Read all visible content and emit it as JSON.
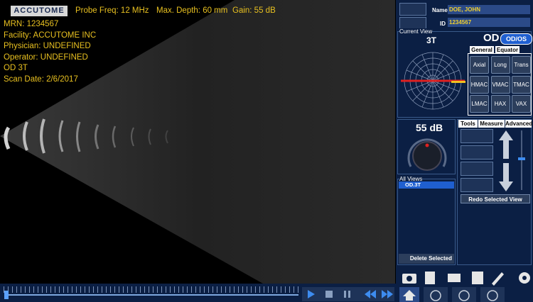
{
  "header": {
    "logo": "ACCUTOME",
    "probe_freq": "Probe Freq: 12 MHz",
    "max_depth": "Max. Depth: 60 mm",
    "gain": "Gain: 55 dB"
  },
  "patient_info": [
    "MRN: 1234567",
    "Facility: ACCUTOME INC",
    "Physician: UNDEFINED",
    "Operator: UNDEFINED",
    "OD  3T",
    "Scan Date: 2/6/2017"
  ],
  "patient": {
    "name_label": "Name",
    "name": "DOE, JOHN",
    "id_label": "ID",
    "id": "1234567"
  },
  "current_view": {
    "label": "Current View",
    "view": "3T",
    "eye": "OD",
    "eye_toggle": "OD/OS",
    "tabs": [
      "General",
      "Equator"
    ],
    "buttons": [
      "Axial",
      "Long",
      "Trans",
      "HMAC",
      "VMAC",
      "TMAC",
      "LMAC",
      "HAX",
      "VAX"
    ]
  },
  "gain_panel": {
    "value": "55 dB"
  },
  "all_views": {
    "label": "All Views",
    "items": [
      "OD.3T"
    ],
    "delete": "Delete Selected"
  },
  "tools": {
    "tabs": [
      "Tools",
      "Measure",
      "Advanced"
    ],
    "redo": "Redo Selected View"
  }
}
